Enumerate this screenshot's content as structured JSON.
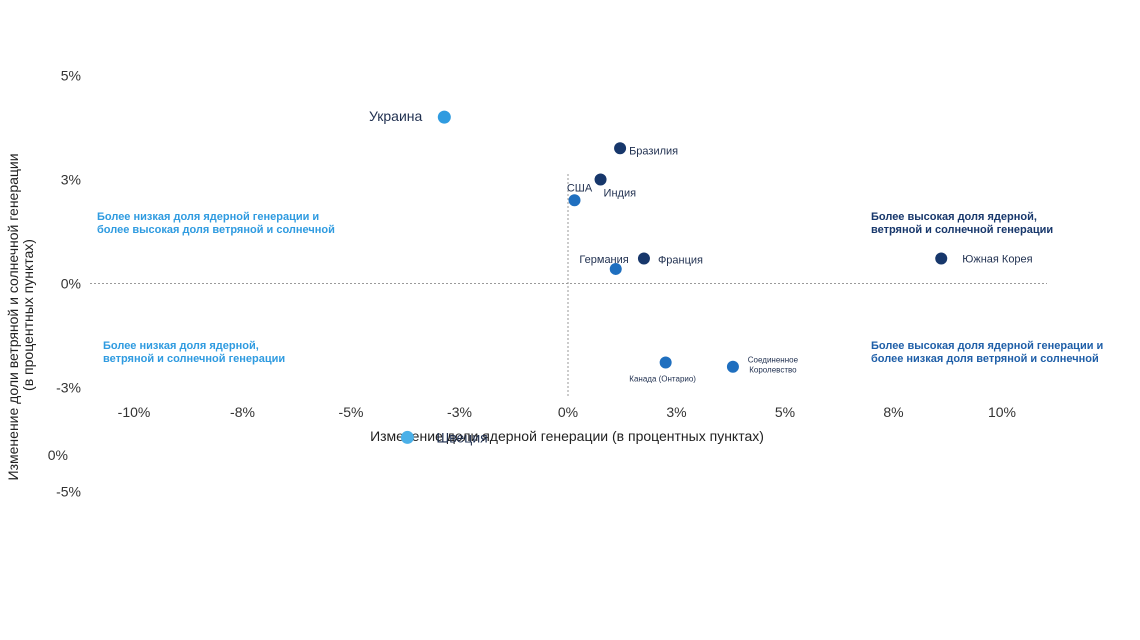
{
  "chart_data": {
    "type": "scatter",
    "xlabel": "Изменение доли ядерной генерации (в процентных пунктах)",
    "ylabel_lines": [
      "Изменение доли ветряной и солнечной генерации",
      "(в процентных пунктах)"
    ],
    "x_ticks": [
      {
        "value": -10,
        "label": "-10%"
      },
      {
        "value": -7.5,
        "label": "-8%"
      },
      {
        "value": -5,
        "label": "-5%"
      },
      {
        "value": -2.5,
        "label": "-3%"
      },
      {
        "value": 0,
        "label": "0%"
      },
      {
        "value": 2.5,
        "label": "3%"
      },
      {
        "value": 5,
        "label": "5%"
      },
      {
        "value": 7.5,
        "label": "8%"
      },
      {
        "value": 10,
        "label": "10%"
      }
    ],
    "y_ticks": [
      {
        "value": 5,
        "label": "5%"
      },
      {
        "value": 2.5,
        "label": "3%"
      },
      {
        "value": 0,
        "label": "0%"
      },
      {
        "value": -2.5,
        "label": "-3%"
      },
      {
        "value": -5,
        "label": "-5%"
      }
    ],
    "extra_y_label": "0%",
    "xlim": [
      -10.5,
      11
    ],
    "ylim": [
      -5.5,
      5.5
    ],
    "colors": {
      "dark": "#17376b",
      "mid": "#1f6fbf",
      "light": "#2f9be0",
      "lighter": "#4bb0e8"
    },
    "points": [
      {
        "name": "Украина",
        "x": -2.85,
        "y": 4.0,
        "color": "#2f9be0",
        "size": "large"
      },
      {
        "name": "Швеция",
        "x": -3.7,
        "y": -3.7,
        "color": "#4bb0e8",
        "size": "large"
      },
      {
        "name": "Бразилия",
        "x": 1.2,
        "y": 3.25,
        "color": "#17376b",
        "size": "normal"
      },
      {
        "name": "США",
        "x": 0.15,
        "y": 2.0,
        "color": "#1f6fbf",
        "size": "normal"
      },
      {
        "name": "Индия",
        "x": 0.75,
        "y": 2.5,
        "color": "#17376b",
        "size": "normal"
      },
      {
        "name": "Германия",
        "x": 1.1,
        "y": 0.35,
        "color": "#1f6fbf",
        "size": "normal"
      },
      {
        "name": "Франция",
        "x": 1.75,
        "y": 0.6,
        "color": "#17376b",
        "size": "normal"
      },
      {
        "name": "Южная Корея",
        "x": 8.6,
        "y": 0.6,
        "color": "#17376b",
        "size": "normal"
      },
      {
        "name": "Канада (Онтарио)",
        "x": 2.25,
        "y": -1.9,
        "color": "#1f6fbf",
        "size": "normal"
      },
      {
        "name": "Соединенное Королевство",
        "x": 3.8,
        "y": -2.0,
        "color": "#1f6fbf",
        "size": "normal"
      }
    ],
    "quadrant_labels": {
      "top_left": [
        "Более низкая доля ядерной генерации и",
        "более высокая доля ветряной и солнечной"
      ],
      "top_right": [
        "Более высокая доля ядерной,",
        "ветряной и солнечной генерации"
      ],
      "bottom_left": [
        "Более низкая доля ядерной,",
        "ветряной и солнечной генерации"
      ],
      "bottom_right": [
        "Более высокая доля ядерной генерации и",
        "более низкая доля ветряной и солнечной"
      ]
    },
    "quadrant_colors": {
      "top_left": "#2f9be0",
      "top_right": "#17376b",
      "bottom_left": "#2f9be0",
      "bottom_right": "#1f5fa8"
    }
  }
}
